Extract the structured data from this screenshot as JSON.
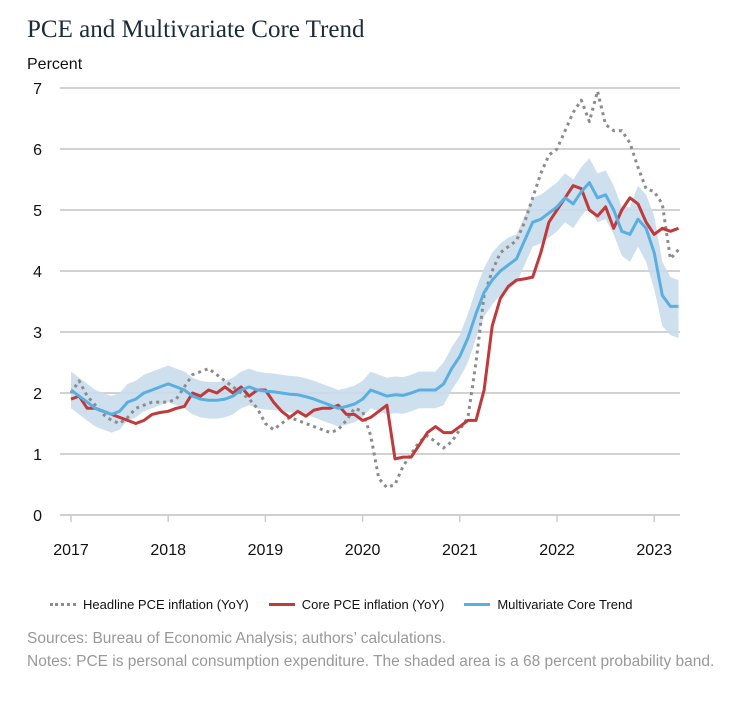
{
  "chart_data": {
    "type": "line",
    "title": "PCE and Multivariate Core Trend",
    "ylabel": "Percent",
    "ylim": [
      0,
      7
    ],
    "yticks": [
      "0",
      "1",
      "2",
      "3",
      "4",
      "5",
      "6",
      "7"
    ],
    "xticks": [
      "2017",
      "2018",
      "2019",
      "2020",
      "2021",
      "2022",
      "2023"
    ],
    "x_start": "2017-01",
    "frequency": "monthly",
    "grid": true,
    "legend_position": "bottom",
    "series": [
      {
        "name": "Headline PCE inflation (YoY)",
        "color": "#8c8c8c",
        "style": "dotted",
        "values": [
          2.0,
          2.2,
          1.95,
          1.8,
          1.65,
          1.55,
          1.5,
          1.6,
          1.75,
          1.8,
          1.85,
          1.85,
          1.85,
          1.9,
          2.1,
          2.3,
          2.35,
          2.4,
          2.3,
          2.2,
          2.1,
          2.0,
          1.9,
          1.75,
          1.5,
          1.4,
          1.5,
          1.6,
          1.55,
          1.5,
          1.45,
          1.4,
          1.35,
          1.4,
          1.55,
          1.75,
          1.7,
          1.3,
          0.6,
          0.45,
          0.5,
          0.8,
          1.0,
          1.2,
          1.3,
          1.2,
          1.1,
          1.2,
          1.4,
          1.6,
          2.5,
          3.6,
          4.0,
          4.3,
          4.4,
          4.5,
          4.8,
          5.2,
          5.6,
          5.9,
          6.0,
          6.3,
          6.6,
          6.8,
          6.45,
          6.95,
          6.4,
          6.3,
          6.3,
          6.1,
          5.7,
          5.35,
          5.3,
          5.1,
          4.2,
          4.35
        ]
      },
      {
        "name": "Core PCE inflation (YoY)",
        "color": "#c0393b",
        "style": "solid",
        "values": [
          1.9,
          1.95,
          1.75,
          1.75,
          1.7,
          1.65,
          1.6,
          1.55,
          1.5,
          1.55,
          1.65,
          1.68,
          1.7,
          1.75,
          1.78,
          2.0,
          1.95,
          2.05,
          2.0,
          2.1,
          2.0,
          2.1,
          1.95,
          2.05,
          2.05,
          1.85,
          1.7,
          1.6,
          1.7,
          1.62,
          1.72,
          1.75,
          1.75,
          1.8,
          1.65,
          1.65,
          1.55,
          1.6,
          1.7,
          1.8,
          0.92,
          0.95,
          0.95,
          1.15,
          1.35,
          1.45,
          1.35,
          1.35,
          1.45,
          1.55,
          1.55,
          2.05,
          3.1,
          3.55,
          3.75,
          3.85,
          3.87,
          3.9,
          4.3,
          4.8,
          5.0,
          5.2,
          5.4,
          5.35,
          5.0,
          4.9,
          5.05,
          4.7,
          5.0,
          5.2,
          5.1,
          4.8,
          4.6,
          4.7,
          4.65,
          4.7
        ]
      },
      {
        "name": "Multivariate Core Trend",
        "color": "#5aaee0",
        "style": "solid",
        "values": [
          2.05,
          1.95,
          1.85,
          1.75,
          1.7,
          1.65,
          1.7,
          1.85,
          1.9,
          2.0,
          2.05,
          2.1,
          2.15,
          2.1,
          2.05,
          1.95,
          1.9,
          1.88,
          1.88,
          1.9,
          1.95,
          2.05,
          2.1,
          2.05,
          2.03,
          2.02,
          2.0,
          1.98,
          1.97,
          1.94,
          1.9,
          1.85,
          1.8,
          1.75,
          1.78,
          1.82,
          1.9,
          2.05,
          2.0,
          1.95,
          1.97,
          1.96,
          2.0,
          2.05,
          2.05,
          2.05,
          2.15,
          2.4,
          2.6,
          2.9,
          3.3,
          3.65,
          3.85,
          4.0,
          4.1,
          4.2,
          4.5,
          4.8,
          4.85,
          4.95,
          5.05,
          5.2,
          5.1,
          5.3,
          5.45,
          5.2,
          5.25,
          5.0,
          4.65,
          4.6,
          4.85,
          4.7,
          4.3,
          3.6,
          3.42,
          3.42
        ]
      }
    ],
    "band": {
      "label": "68 percent probability band",
      "color": "#c9dcec",
      "upper": [
        2.35,
        2.25,
        2.15,
        2.05,
        2.0,
        1.95,
        2.0,
        2.15,
        2.2,
        2.3,
        2.35,
        2.4,
        2.45,
        2.4,
        2.35,
        2.25,
        2.2,
        2.18,
        2.18,
        2.2,
        2.25,
        2.35,
        2.4,
        2.35,
        2.33,
        2.32,
        2.3,
        2.28,
        2.27,
        2.24,
        2.2,
        2.15,
        2.1,
        2.05,
        2.08,
        2.12,
        2.2,
        2.35,
        2.3,
        2.25,
        2.27,
        2.26,
        2.3,
        2.35,
        2.35,
        2.35,
        2.5,
        2.75,
        2.95,
        3.3,
        3.7,
        4.05,
        4.3,
        4.45,
        4.55,
        4.6,
        4.9,
        5.2,
        5.25,
        5.35,
        5.45,
        5.6,
        5.5,
        5.7,
        5.85,
        5.6,
        5.65,
        5.4,
        5.05,
        5.05,
        5.4,
        5.25,
        4.9,
        4.15,
        3.9,
        3.85
      ],
      "lower": [
        1.75,
        1.65,
        1.55,
        1.45,
        1.4,
        1.35,
        1.4,
        1.55,
        1.6,
        1.7,
        1.75,
        1.8,
        1.85,
        1.8,
        1.75,
        1.65,
        1.6,
        1.58,
        1.58,
        1.6,
        1.65,
        1.75,
        1.8,
        1.75,
        1.73,
        1.72,
        1.7,
        1.68,
        1.67,
        1.64,
        1.6,
        1.55,
        1.5,
        1.45,
        1.48,
        1.52,
        1.6,
        1.75,
        1.7,
        1.65,
        1.67,
        1.66,
        1.7,
        1.75,
        1.75,
        1.75,
        1.8,
        2.05,
        2.25,
        2.5,
        2.9,
        3.25,
        3.45,
        3.6,
        3.7,
        3.8,
        4.1,
        4.4,
        4.45,
        4.55,
        4.65,
        4.8,
        4.7,
        4.9,
        5.05,
        4.8,
        4.85,
        4.6,
        4.25,
        4.15,
        4.4,
        4.15,
        3.7,
        3.1,
        2.95,
        2.9
      ]
    }
  },
  "sources": "Sources: Bureau of Economic Analysis; authors’ calculations.",
  "notes": "Notes: PCE is personal consumption expenditure. The shaded area is a 68 percent probability band."
}
